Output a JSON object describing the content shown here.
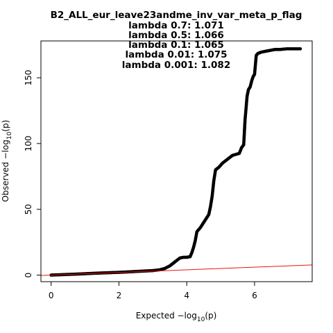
{
  "chart_data": {
    "type": "scatter",
    "title": "B2_ALL_eur_leave23andme_inv_var_meta_p_flag",
    "subtitle_lines": [
      "lambda 0.7: 1.071",
      "lambda 0.5: 1.066",
      "lambda 0.1: 1.065",
      "lambda 0.01: 1.075",
      "lambda 0.001: 1.082"
    ],
    "xlabel": {
      "main": "Expected  −log",
      "sub": "10",
      "tail": "(p)"
    },
    "ylabel": {
      "main": "Observed  −log",
      "sub": "10",
      "tail": "(p)"
    },
    "xlim": [
      -0.3,
      7.7
    ],
    "ylim": [
      -5,
      178
    ],
    "x_ticks": [
      0,
      2,
      4,
      6
    ],
    "y_ticks": [
      0,
      50,
      100,
      150
    ],
    "x_tick_labels": [
      "0",
      "2",
      "4",
      "6"
    ],
    "y_tick_labels": [
      "0",
      "50",
      "100",
      "150"
    ],
    "grid": false,
    "point_color": "#000000",
    "reference_line": {
      "slope": 1,
      "intercept": 0,
      "color": "#e8140c"
    },
    "series": [
      {
        "values": [
          [
            0.0,
            0.0
          ],
          [
            0.3,
            0.3
          ],
          [
            0.6,
            0.6
          ],
          [
            0.9,
            0.9
          ],
          [
            1.2,
            1.3
          ],
          [
            1.5,
            1.6
          ],
          [
            1.8,
            1.9
          ],
          [
            2.1,
            2.2
          ],
          [
            2.4,
            2.6
          ],
          [
            2.7,
            3.0
          ],
          [
            3.0,
            3.4
          ],
          [
            3.2,
            4.0
          ],
          [
            3.35,
            5.0
          ],
          [
            3.5,
            7.0
          ],
          [
            3.6,
            9.0
          ],
          [
            3.7,
            11.0
          ],
          [
            3.8,
            13.0
          ],
          [
            3.9,
            13.5
          ],
          [
            4.0,
            13.5
          ],
          [
            4.1,
            14.0
          ],
          [
            4.15,
            17.0
          ],
          [
            4.2,
            21.0
          ],
          [
            4.25,
            26.0
          ],
          [
            4.3,
            33.0
          ],
          [
            4.4,
            36.0
          ],
          [
            4.5,
            40.0
          ],
          [
            4.6,
            44.0
          ],
          [
            4.65,
            46.0
          ],
          [
            4.7,
            52.0
          ],
          [
            4.75,
            60.0
          ],
          [
            4.8,
            72.0
          ],
          [
            4.85,
            80.0
          ],
          [
            4.95,
            82.0
          ],
          [
            5.05,
            85.0
          ],
          [
            5.2,
            88.0
          ],
          [
            5.35,
            91.0
          ],
          [
            5.55,
            92.5
          ],
          [
            5.62,
            97.0
          ],
          [
            5.68,
            99.0
          ],
          [
            5.72,
            118.0
          ],
          [
            5.78,
            136.0
          ],
          [
            5.82,
            141.0
          ],
          [
            5.87,
            143.0
          ],
          [
            5.92,
            148.0
          ],
          [
            5.96,
            151.0
          ],
          [
            6.0,
            152.5
          ],
          [
            6.05,
            167.0
          ],
          [
            6.1,
            168.5
          ],
          [
            6.15,
            169.0
          ],
          [
            6.2,
            169.5
          ],
          [
            6.3,
            170.0
          ],
          [
            6.4,
            170.5
          ],
          [
            6.5,
            171.0
          ],
          [
            6.6,
            171.5
          ],
          [
            6.75,
            171.5
          ],
          [
            6.95,
            172.0
          ],
          [
            7.35,
            172.0
          ]
        ]
      }
    ]
  }
}
